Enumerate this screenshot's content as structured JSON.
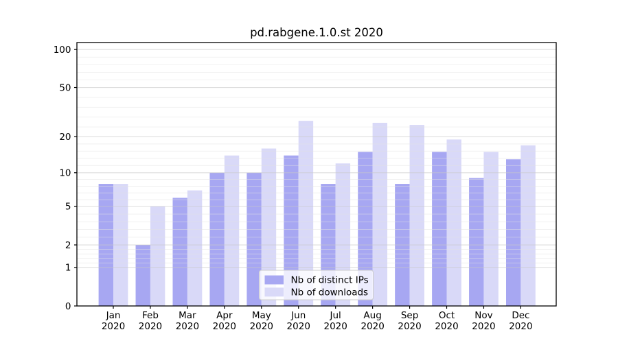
{
  "chart_data": {
    "type": "bar",
    "title": "pd.rabgene.1.0.st 2020",
    "categories": [
      "Jan",
      "Feb",
      "Mar",
      "Apr",
      "May",
      "Jun",
      "Jul",
      "Aug",
      "Sep",
      "Oct",
      "Nov",
      "Dec"
    ],
    "year_label": "2020",
    "series": [
      {
        "name": "Nb of distinct IPs",
        "color": "#a7a7f2",
        "values": [
          8,
          2,
          6,
          10,
          10,
          14,
          8,
          15,
          8,
          15,
          9,
          13
        ]
      },
      {
        "name": "Nb of downloads",
        "color": "#d9d9f8",
        "values": [
          8,
          5,
          7,
          14,
          16,
          27,
          12,
          26,
          25,
          19,
          15,
          17
        ]
      }
    ],
    "yscale": "log1p",
    "y_ticks": [
      0,
      1,
      2,
      5,
      10,
      20,
      50,
      100
    ],
    "ylim": [
      0,
      110
    ],
    "grid": true,
    "grid_above_bars": true,
    "legend_position": "lower center",
    "colors": {
      "axis": "#000000",
      "grid_major": "#c9c9c9",
      "grid_minor": "#e2e2e2",
      "legend_border": "#cccccc",
      "legend_background": "#ffffff"
    }
  }
}
